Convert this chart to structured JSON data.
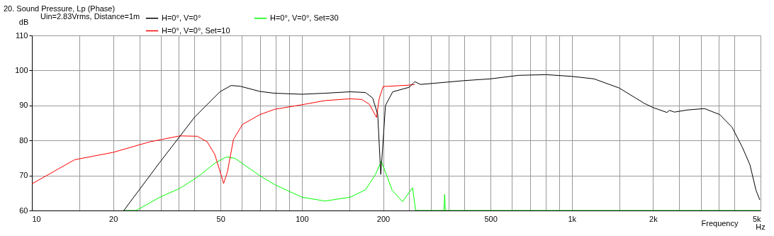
{
  "chart_data": {
    "type": "line",
    "title": "20. Sound Pressure, Lp (Phase)",
    "xlabel": "Frequency",
    "ylabel": "dB",
    "annotations": [
      "Uin=2.83Vrms, Distance=1m",
      "Hz"
    ],
    "log": "x",
    "grid": true,
    "legend": "top left",
    "marker": "none",
    "line_style": "solid",
    "xlim": [
      10,
      5000
    ],
    "ylim": [
      60,
      110
    ],
    "xticks": [
      10,
      {
        "value": 15,
        "label": null
      },
      20,
      {
        "value": 25,
        "label": null
      },
      {
        "value": 30,
        "label": null
      },
      {
        "value": 35,
        "label": null
      },
      {
        "value": 40,
        "label": null
      },
      50,
      {
        "value": 60,
        "label": null
      },
      {
        "value": 70,
        "label": null
      },
      {
        "value": 80,
        "label": null
      },
      {
        "value": 90,
        "label": null
      },
      100,
      {
        "value": 150,
        "label": null
      },
      200,
      {
        "value": 250,
        "label": null
      },
      {
        "value": 300,
        "label": null
      },
      {
        "value": 350,
        "label": null
      },
      {
        "value": 400,
        "label": null
      },
      500,
      {
        "value": 600,
        "label": null
      },
      {
        "value": 700,
        "label": null
      },
      {
        "value": 800,
        "label": null
      },
      {
        "value": 900,
        "label": null
      },
      {
        "value": 1000,
        "label": "1k"
      },
      {
        "value": 1500,
        "label": null
      },
      {
        "value": 2000,
        "label": "2k"
      },
      {
        "value": 2500,
        "label": null
      },
      {
        "value": 3000,
        "label": null
      },
      {
        "value": 3500,
        "label": null
      },
      {
        "value": 4000,
        "label": null
      },
      {
        "value": 5000,
        "label": "5k"
      }
    ],
    "yticks": [
      60,
      70,
      80,
      90,
      100,
      110
    ],
    "series": [
      {
        "name": "H=0°, V=0°",
        "color": "#000000",
        "x": [
          21.9,
          29.8,
          40.1,
          49.7,
          54.7,
          59,
          70,
          79,
          100,
          122,
          151,
          172,
          183,
          191,
          196,
          199,
          204,
          217,
          250,
          262,
          275,
          400,
          500,
          635,
          804,
          1000,
          1208,
          1497,
          1855,
          2000,
          2250,
          2300,
          2400,
          2670,
          3100,
          3530,
          3920,
          4280,
          4570,
          4810,
          4970
        ],
        "values": [
          60,
          73.8,
          86.7,
          93.9,
          95.7,
          95.5,
          94,
          93.5,
          93.2,
          93.5,
          93.9,
          93.7,
          92.1,
          87.4,
          70.3,
          77.4,
          90,
          93.9,
          95.2,
          96.8,
          96,
          97.1,
          97.6,
          98.6,
          98.8,
          98.3,
          97.6,
          95,
          90.6,
          89.4,
          88,
          88.6,
          88.1,
          88.7,
          89.1,
          87.4,
          83.8,
          78.1,
          73,
          65.8,
          63
        ]
      },
      {
        "name": "H=0°, V=0°, Set=10",
        "color": "#ff0000",
        "x": [
          10,
          14.4,
          20,
          27.3,
          35.3,
          41,
          44.6,
          47.6,
          50.2,
          51.3,
          53,
          55.8,
          60.3,
          70,
          79.3,
          100,
          122,
          151,
          167,
          178,
          189,
          193.3,
          200,
          249,
          262
        ],
        "values": [
          67.6,
          74.5,
          76.6,
          79.6,
          81.3,
          81.2,
          79.6,
          76,
          70.2,
          67.7,
          71,
          80.3,
          84.6,
          87.4,
          88.9,
          90.2,
          91.4,
          91.9,
          91.7,
          90.3,
          86.6,
          91.9,
          95.4,
          95.8,
          96
        ]
      },
      {
        "name": "H=0°, V=0°, Set=30",
        "color": "#00ff00",
        "x": [
          21.9,
          24.3,
          29.8,
          35.3,
          41,
          47.6,
          52.5,
          56.5,
          70,
          79.3,
          100,
          122,
          151,
          172,
          187,
          197,
          216,
          236,
          257,
          264,
          336,
          338,
          340,
          5000
        ],
        "values": [
          60,
          60,
          63.8,
          66.3,
          69.5,
          73.5,
          75.3,
          74.9,
          69.9,
          67.4,
          63.8,
          62.7,
          63.8,
          65.9,
          70.2,
          74.1,
          65.8,
          62.5,
          66.5,
          60,
          60,
          64.6,
          60,
          60
        ]
      }
    ]
  }
}
